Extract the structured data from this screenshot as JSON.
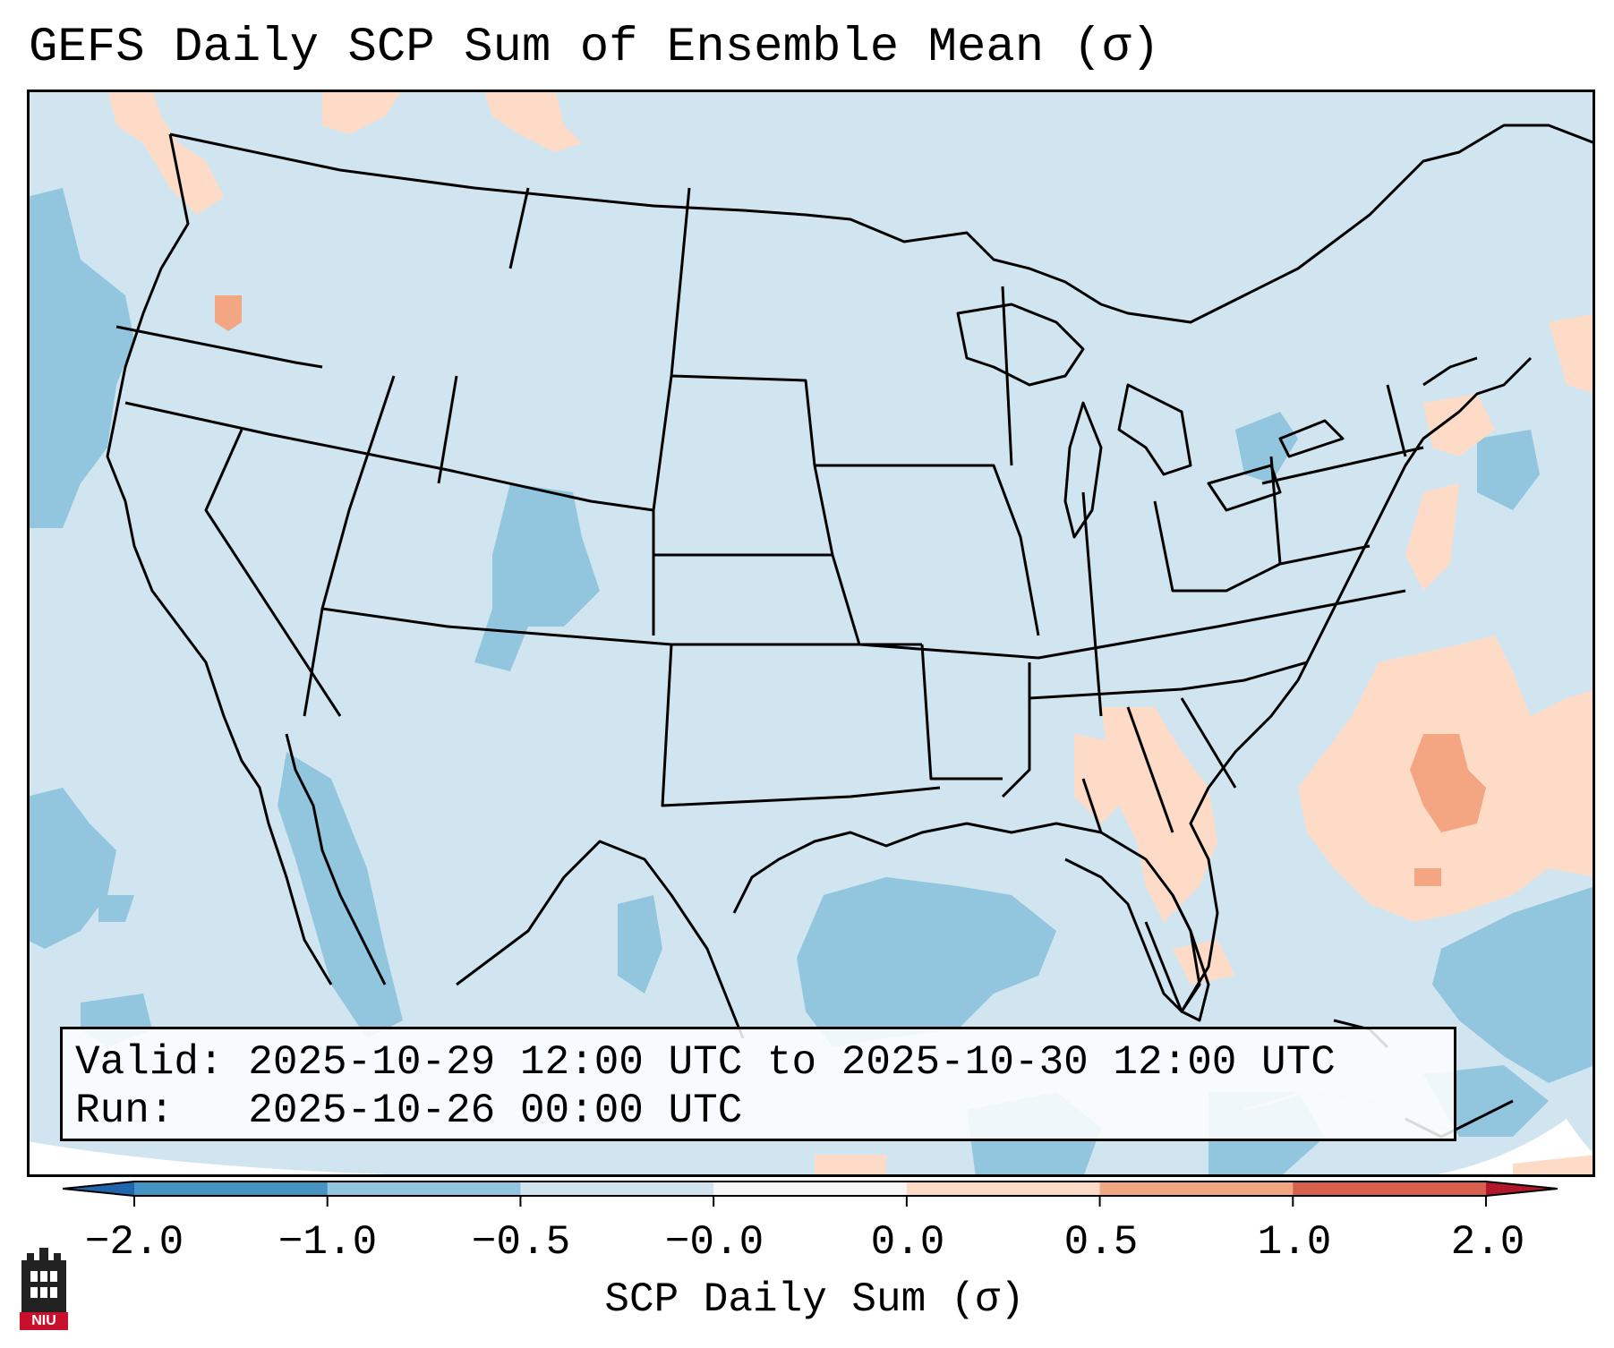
{
  "title": "GEFS Daily SCP Sum of Ensemble Mean (σ)",
  "info": {
    "valid_line": "Valid: 2025-10-29 12:00 UTC to 2025-10-30 12:00 UTC",
    "run_line": "Run:   2025-10-26 00:00 UTC"
  },
  "colorbar": {
    "title": "SCP Daily Sum (σ)",
    "tick_labels": [
      "−2.0",
      "−1.0",
      "−0.5",
      "−0.0",
      "0.0",
      "0.5",
      "1.0",
      "2.0"
    ],
    "bins": [
      {
        "from": -2.0,
        "to": -1.0,
        "color": "#4393c3"
      },
      {
        "from": -1.0,
        "to": -0.5,
        "color": "#92c5de"
      },
      {
        "from": -0.5,
        "to": -0.0,
        "color": "#d1e5f0"
      },
      {
        "from": -0.0,
        "to": 0.0,
        "color": "#f7f7f7"
      },
      {
        "from": 0.0,
        "to": 0.5,
        "color": "#fddbc7"
      },
      {
        "from": 0.5,
        "to": 1.0,
        "color": "#f4a582"
      },
      {
        "from": 1.0,
        "to": 2.0,
        "color": "#d6604d"
      }
    ],
    "under_color": "#2166ac",
    "over_color": "#b2182b"
  },
  "map": {
    "background_color": "#d1e5f0",
    "region": "Contiguous United States with surrounding ocean, Mexico, Canada"
  },
  "logo": {
    "text": "NIU",
    "accent": "#c8102e"
  }
}
